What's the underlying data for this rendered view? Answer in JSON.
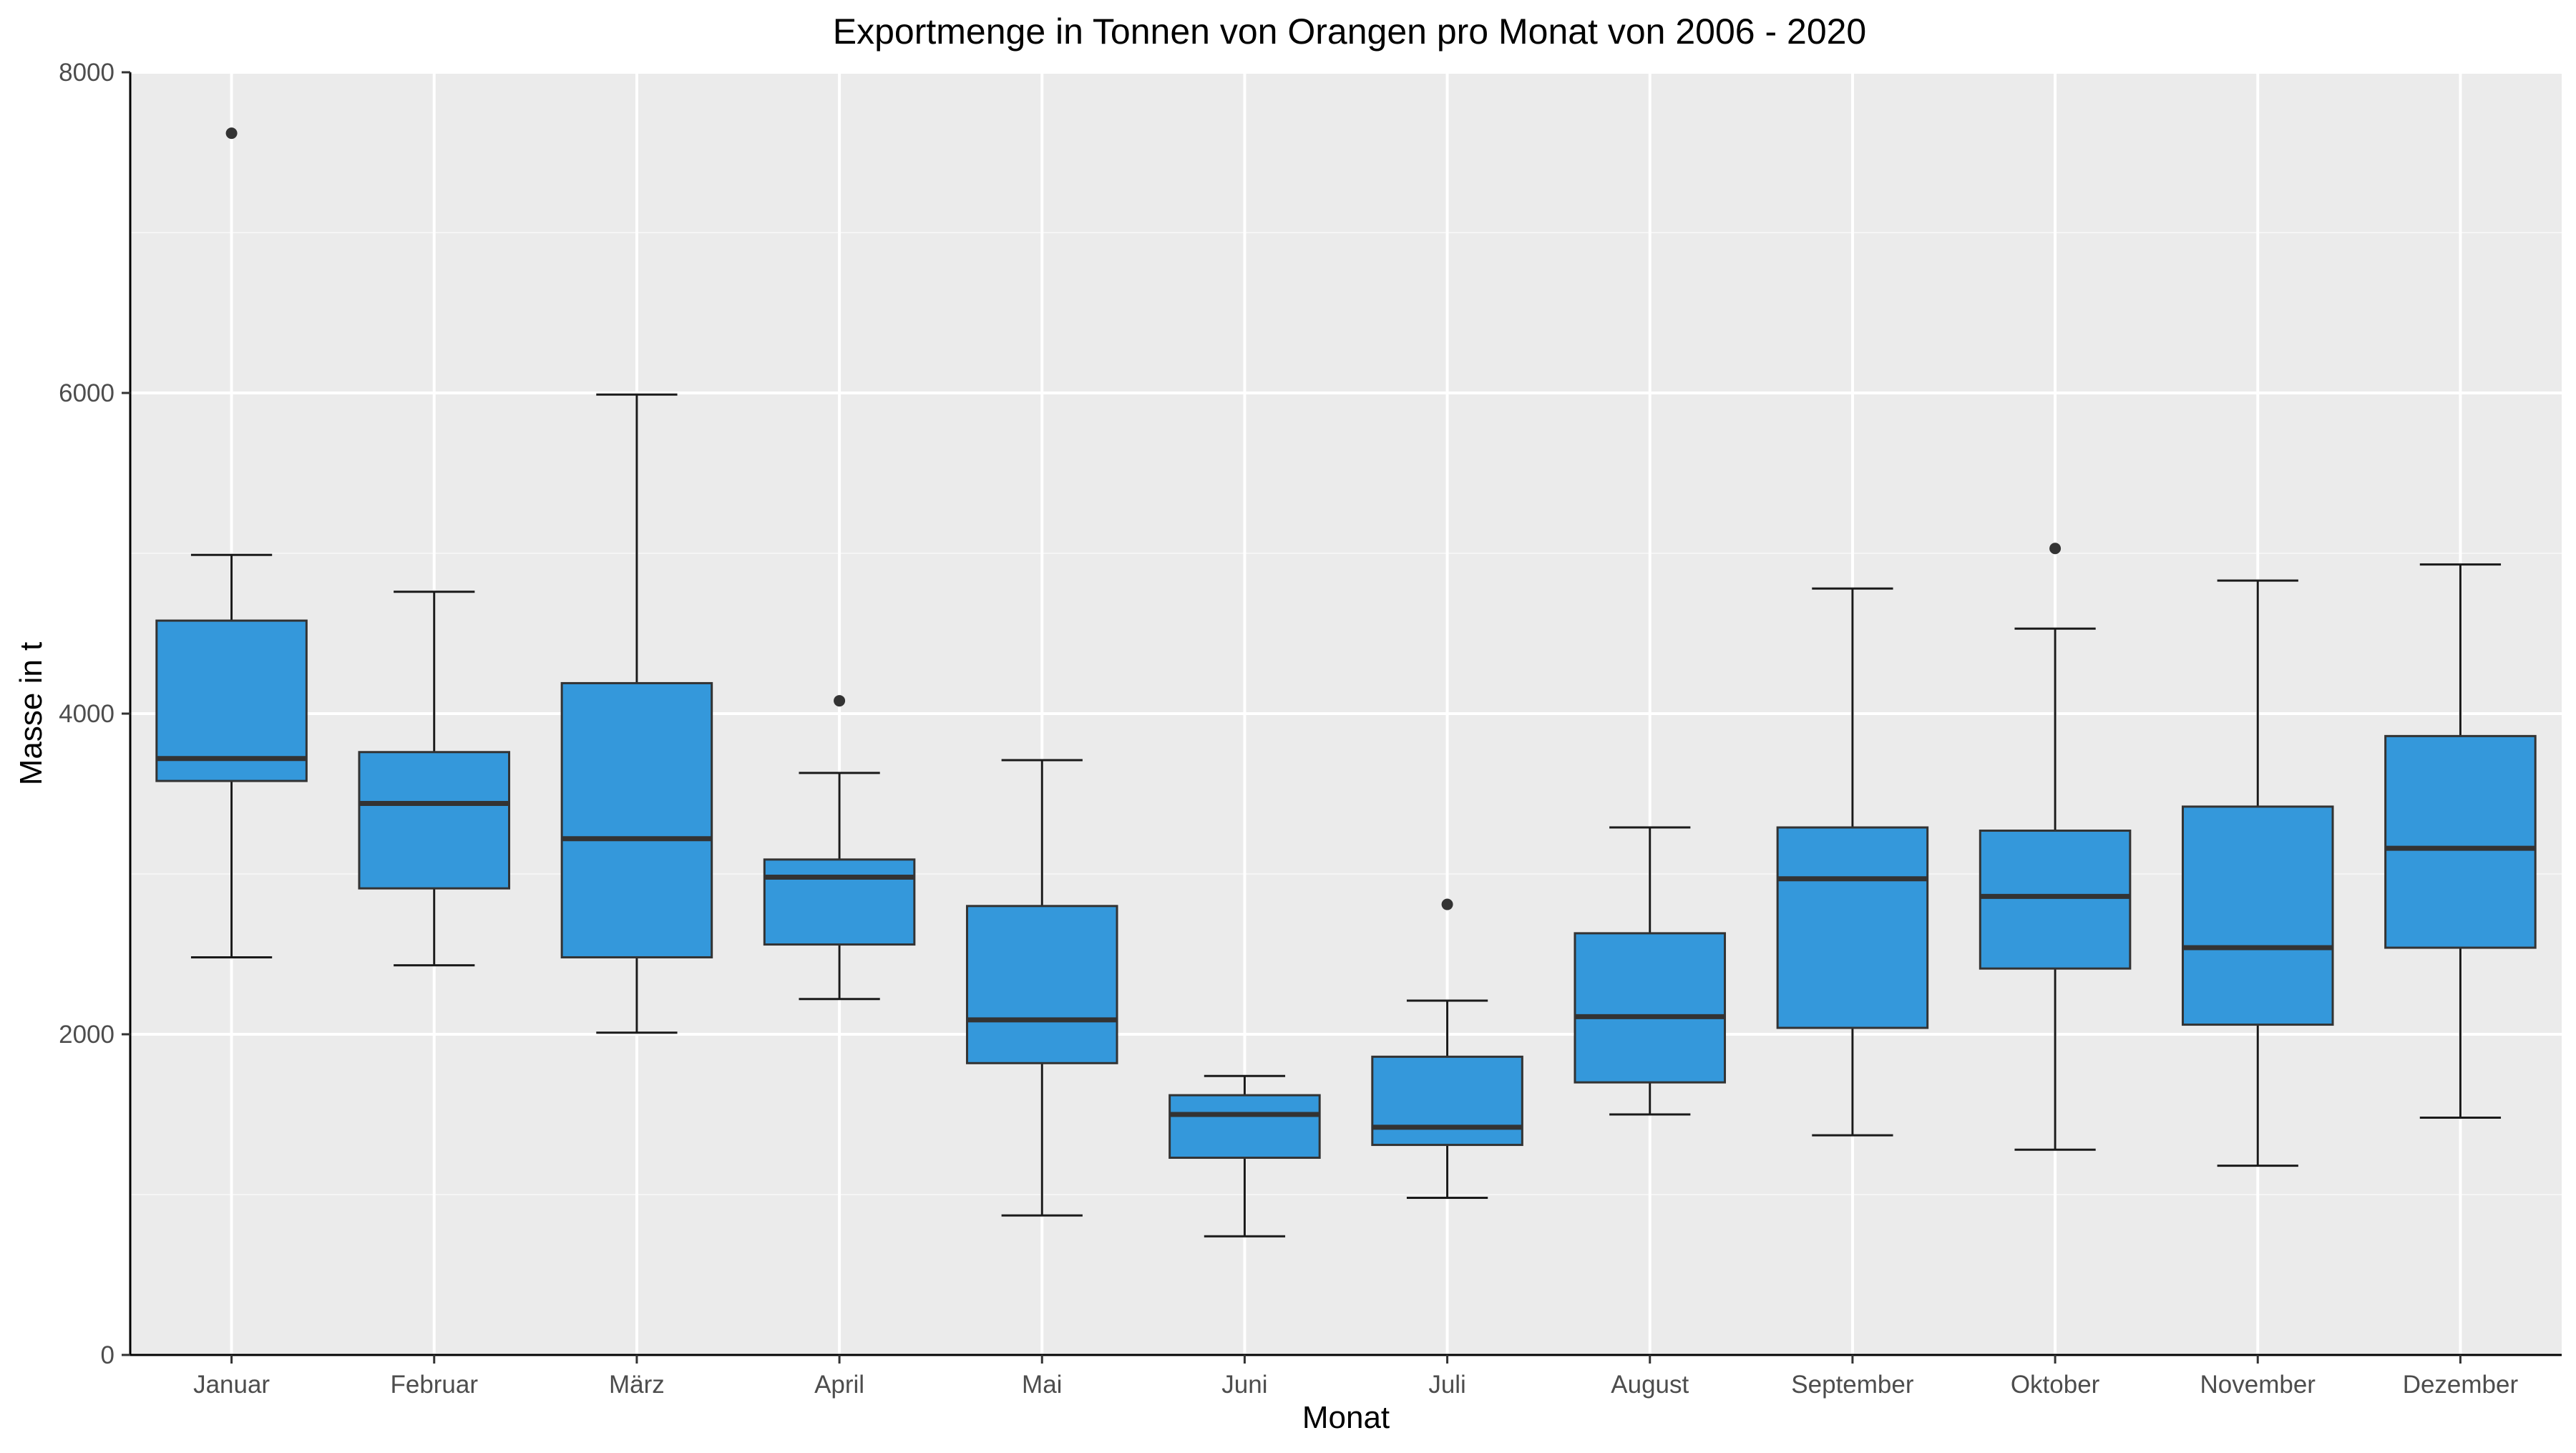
{
  "chart_data": {
    "type": "boxplot",
    "title": "Exportmenge in Tonnen von Orangen pro Monat von 2006 - 2020",
    "xlabel": "Monat",
    "ylabel": "Masse in t",
    "ylim": [
      0,
      8000
    ],
    "yticks": [
      0,
      2000,
      4000,
      6000,
      8000
    ],
    "grid": true,
    "legend": "none",
    "colors": {
      "panel_background": "#ebebeb",
      "grid_major": "#ffffff",
      "grid_minor": "#f5f5f5",
      "box_fill": "#3498db",
      "box_line": "#333333",
      "whisker": "#1a1a1a",
      "outlier": "#333333"
    },
    "categories": [
      "Januar",
      "Februar",
      "März",
      "April",
      "Mai",
      "Juni",
      "Juli",
      "August",
      "September",
      "Oktober",
      "November",
      "Dezember"
    ],
    "boxes": [
      {
        "min": 2480,
        "q1": 3580,
        "median": 3720,
        "q3": 4580,
        "max": 4990,
        "outliers": [
          7620
        ]
      },
      {
        "min": 2430,
        "q1": 2910,
        "median": 3440,
        "q3": 3760,
        "max": 4760,
        "outliers": []
      },
      {
        "min": 2010,
        "q1": 2480,
        "median": 3220,
        "q3": 4190,
        "max": 5990,
        "outliers": []
      },
      {
        "min": 2220,
        "q1": 2560,
        "median": 2980,
        "q3": 3090,
        "max": 3630,
        "outliers": [
          4080
        ]
      },
      {
        "min": 870,
        "q1": 1820,
        "median": 2090,
        "q3": 2800,
        "max": 3710,
        "outliers": []
      },
      {
        "min": 740,
        "q1": 1230,
        "median": 1500,
        "q3": 1620,
        "max": 1740,
        "outliers": []
      },
      {
        "min": 980,
        "q1": 1310,
        "median": 1420,
        "q3": 1860,
        "max": 2210,
        "outliers": [
          2810
        ]
      },
      {
        "min": 1500,
        "q1": 1700,
        "median": 2110,
        "q3": 2630,
        "max": 3290,
        "outliers": []
      },
      {
        "min": 1370,
        "q1": 2040,
        "median": 2970,
        "q3": 3290,
        "max": 4780,
        "outliers": []
      },
      {
        "min": 1280,
        "q1": 2410,
        "median": 2860,
        "q3": 3270,
        "max": 4530,
        "outliers": [
          5030
        ]
      },
      {
        "min": 1180,
        "q1": 2060,
        "median": 2540,
        "q3": 3420,
        "max": 4830,
        "outliers": []
      },
      {
        "min": 1480,
        "q1": 2540,
        "median": 3160,
        "q3": 3860,
        "max": 4930,
        "outliers": []
      }
    ]
  }
}
